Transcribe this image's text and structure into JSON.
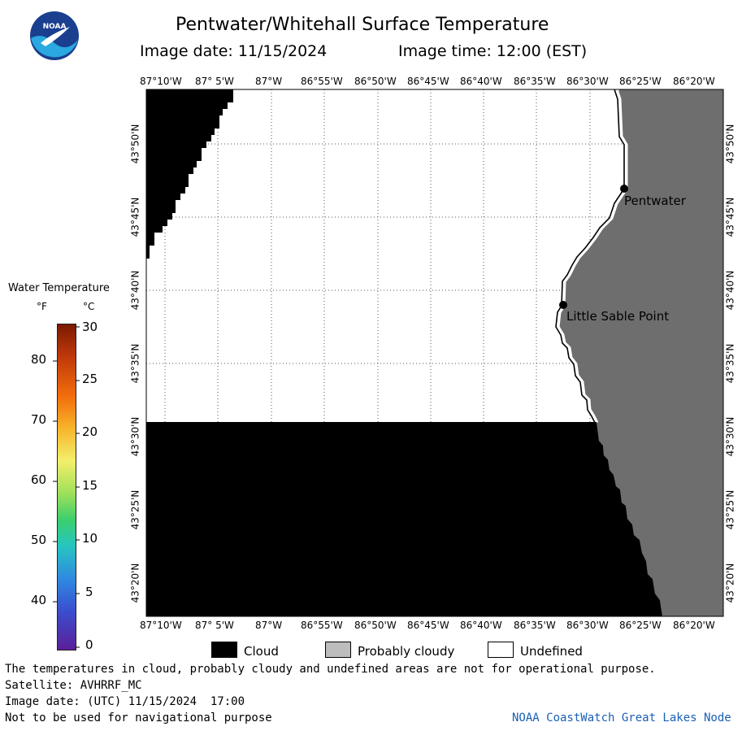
{
  "header": {
    "title": "Pentwater/Whitehall Surface Temperature",
    "date_text": "Image date: 11/15/2024",
    "time_text": "Image time: 12:00 (EST)"
  },
  "logo": {
    "alt": "NOAA",
    "text": "NOAA",
    "colors": {
      "dark": "#1a3f8f",
      "light": "#2aa8e0",
      "bird": "#ffffff"
    }
  },
  "map": {
    "top_lon_labels": [
      "87°10'W",
      "87° 5'W",
      "87°W",
      "86°55'W",
      "86°50'W",
      "86°45'W",
      "86°40'W",
      "86°35'W",
      "86°30'W",
      "86°25'W",
      "86°20'W"
    ],
    "bottom_lon_labels": [
      "87°10'W",
      "87° 5'W",
      "87°W",
      "86°55'W",
      "86°50'W",
      "86°45'W",
      "86°40'W",
      "86°35'W",
      "86°30'W",
      "86°25'W",
      "86°20'W"
    ],
    "left_lat_labels": [
      "43°50'N",
      "43°45'N",
      "43°40'N",
      "43°35'N",
      "43°30'N",
      "43°25'N",
      "43°20'N"
    ],
    "right_lat_labels": [
      "43°50'N",
      "43°45'N",
      "43°40'N",
      "43°35'N",
      "43°30'N",
      "43°25'N",
      "43°20'N"
    ],
    "places": [
      {
        "name": "Pentwater"
      },
      {
        "name": "Little Sable Point"
      }
    ],
    "colors": {
      "cloud": "#000000",
      "land": "#6e6e6e",
      "undefined": "#ffffff",
      "grid": "#555555"
    }
  },
  "colorbar": {
    "title": "Water Temperature",
    "unit_f": "°F",
    "unit_c": "°C",
    "f_ticks": [
      "80",
      "70",
      "60",
      "50",
      "40"
    ],
    "c_ticks": [
      "30",
      "25",
      "20",
      "15",
      "10",
      "5",
      "0"
    ]
  },
  "legend": {
    "items": [
      {
        "label": "Cloud",
        "color": "#000000"
      },
      {
        "label": "Probably cloudy",
        "color": "#bdbdbd"
      },
      {
        "label": "Undefined",
        "color": "#ffffff"
      }
    ]
  },
  "footer": {
    "note": "The temperatures in cloud, probably cloudy and undefined areas are not for operational purpose.",
    "satellite": "Satellite: AVHRRF_MC",
    "utc_date": "Image date: (UTC) 11/15/2024  17:00",
    "nav_warning": "Not to be used for navigational purpose",
    "credit": "NOAA CoastWatch Great Lakes Node",
    "credit_color": "#1a5fb4"
  }
}
